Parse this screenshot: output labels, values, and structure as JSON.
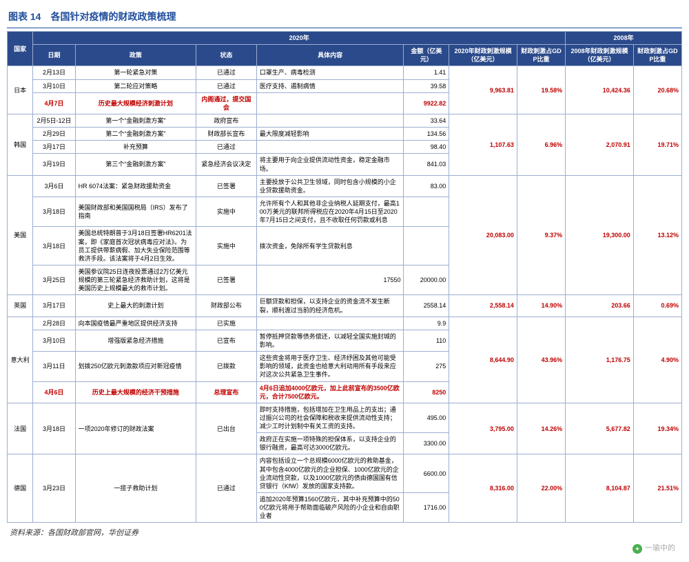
{
  "title": "图表 14　各国针对疫情的财政政策梳理",
  "source": "资料来源：各国财政部官网，华创证券",
  "footer_credit": "一瑜中的",
  "header_year_2020": "2020年",
  "header_year_2008": "2008年",
  "cols": {
    "country": "国家",
    "date": "日期",
    "policy": "政策",
    "status": "状态",
    "detail": "具体内容",
    "amount": "金额（亿美元）",
    "scale2020": "2020年财政刺激规模（亿美元）",
    "gdp2020": "财政刺激占GDP比重",
    "scale2008": "2008年财政刺激规模（亿美元）",
    "gdp2008": "财政刺激占GDP比重"
  },
  "jp": {
    "name": "日本",
    "r1": {
      "date": "2月13日",
      "policy": "第一轮紧急对策",
      "status": "已通过",
      "detail": "口罩生产、病毒检测",
      "amt": "1.41"
    },
    "r2": {
      "date": "3月10日",
      "policy": "第二轮应对策略",
      "status": "已通过",
      "detail": "医疗支持、遏制病情",
      "amt": "39.58"
    },
    "r3": {
      "date": "4月7日",
      "policy": "历史最大规模经济刺激计划",
      "status": "内阁通过，提交国会",
      "detail": "",
      "amt": "9922.82"
    },
    "scale2020": "9,963.81",
    "gdp2020": "19.58%",
    "scale2008": "10,424.36",
    "gdp2008": "20.68%"
  },
  "kr": {
    "name": "韩国",
    "r1": {
      "date": "2月5日-12日",
      "policy": "第一个“金融刺激方案”",
      "status": "政府宣布",
      "detail": "",
      "amt": "33.64"
    },
    "r2": {
      "date": "2月29日",
      "policy": "第二个“金融刺激方案”",
      "status": "财政部长宣布",
      "detail": "最大限度减轻影响",
      "amt": "134.56"
    },
    "r3": {
      "date": "3月17日",
      "policy": "补充预算",
      "status": "已通过",
      "detail": "",
      "amt": "98.40"
    },
    "r4": {
      "date": "3月19日",
      "policy": "第三个“金融刺激方案”",
      "status": "紧急经济会议决定",
      "detail": "将主要用于向企业提供流动性资金，稳定金融市场。",
      "amt": "841.03"
    },
    "scale2020": "1,107.63",
    "gdp2020": "6.96%",
    "scale2008": "2,070.91",
    "gdp2008": "19.71%"
  },
  "us": {
    "name": "美国",
    "r1": {
      "date": "3月6日",
      "policy": "HR 6074法案：紧急财政援助资金",
      "status": "已签署",
      "detail": "主要投放于公共卫生领域，同时包含小规模的小企业贷款援助资金。",
      "amt": "83.00"
    },
    "r2": {
      "date": "3月18日",
      "policy": "美国财政部和美国国税局（IRS）发布了指南",
      "status": "实施中",
      "detail": "允许所有个人和其他非企业纳税人延期支付，最高100万美元的联邦所得税应在2020年4月15日至2020年7月15日之间支付，且不收取任何罚款或利息",
      "amt": ""
    },
    "r3": {
      "date": "3月18日",
      "policy": "美国总统特朗普于3月18日签署HR6201法案，即《家庭首次冠状病毒应对法》。为员工提供带薪病假、加大失业保险范围等救济手段。该法案将于4月2日生效。",
      "status": "实施中",
      "detail": "拨次资金，免除所有学生贷款利息",
      "amt": ""
    },
    "r4": {
      "date": "3月25日",
      "policy": "美国参议院25日连夜投票通过2万亿美元规模的第三轮紧急经济救助计划，这将是美国历史上规模最大的救市计划。",
      "status": "已签署",
      "detail": "17550",
      "amt": "20000.00"
    },
    "scale2020": "20,083.00",
    "gdp2020": "9.37%",
    "scale2008": "19,300.00",
    "gdp2008": "13.12%"
  },
  "uk": {
    "name": "英国",
    "r1": {
      "date": "3月17日",
      "policy": "史上最大的刺激计划",
      "status": "财政部公布",
      "detail": "巨额贷款和担保，以支持企业的资金流不发生断裂，顺利渡过当前的经济危机。",
      "amt": "2558.14"
    },
    "scale2020": "2,558.14",
    "gdp2020": "14.90%",
    "scale2008": "203.66",
    "gdp2008": "0.69%"
  },
  "it": {
    "name": "意大利",
    "r1": {
      "date": "2月28日",
      "policy": "向本国疫情最严重地区提供经济支持",
      "status": "已实施",
      "detail": "",
      "amt": "9.9"
    },
    "r2": {
      "date": "3月10日",
      "policy": "增强版紧急经济措施",
      "status": "已宣布",
      "detail": "暂停抵押贷款等债务偿还，以减轻全国实施封城的影响。",
      "amt": "110"
    },
    "r3": {
      "date": "3月11日",
      "policy": "划拨250亿欧元刺激款项应对新冠疫情",
      "status": "已拨款",
      "detail": "这些资金将用于医疗卫生、经济纾困及其他可能受影响的领域，此资金也给意大利动用所有手段来应对这次公共紧急卫生事件。",
      "amt": "275"
    },
    "r4": {
      "date": "4月6日",
      "policy": "历史上最大规模的经济干预措施",
      "status": "总理宣布",
      "detail": "4月6日追加4000亿欧元，加上此前宣布的3500亿欧元，合计7500亿欧元。",
      "amt": "8250"
    },
    "scale2020": "8,644.90",
    "gdp2020": "43.96%",
    "scale2008": "1,176.75",
    "gdp2008": "4.90%"
  },
  "fr": {
    "name": "法国",
    "r1": {
      "date": "3月18日",
      "policy": "一项2020年修订的财政法案",
      "status": "已出台",
      "d1": "即时支持措施，包括增加在卫生用品上的支出；通过振兴公司的社会保障和税收来提供流动性支持；减少工时计划制中有关工资的支持。",
      "a1": "495.00",
      "d2": "政府正在实施一项特殊的担保体系，以支持企业的银行融资，最高可达3000亿欧元。",
      "a2": "3300.00"
    },
    "scale2020": "3,795.00",
    "gdp2020": "14.26%",
    "scale2008": "5,677.82",
    "gdp2008": "19.34%"
  },
  "de": {
    "name": "德国",
    "r1": {
      "date": "3月23日",
      "policy": "一揽子救助计划",
      "status": "已通过",
      "d1": "内容包括设立一个总规模6000亿欧元的救助基金，其中包含4000亿欧元的企业担保、1000亿欧元的企业流动性贷款，以及1000亿欧元的债由德国国有信贷银行（KfW）发放的国家支持款。",
      "a1": "6600.00",
      "d2": "追加2020年预算1560亿欧元，其中补充预算中的500亿欧元将用于帮助面临破产风险的小企业和自由职业者",
      "a2": "1716.00"
    },
    "scale2020": "8,316.00",
    "gdp2020": "22.00%",
    "scale2008": "8,104.87",
    "gdp2008": "21.51%"
  }
}
